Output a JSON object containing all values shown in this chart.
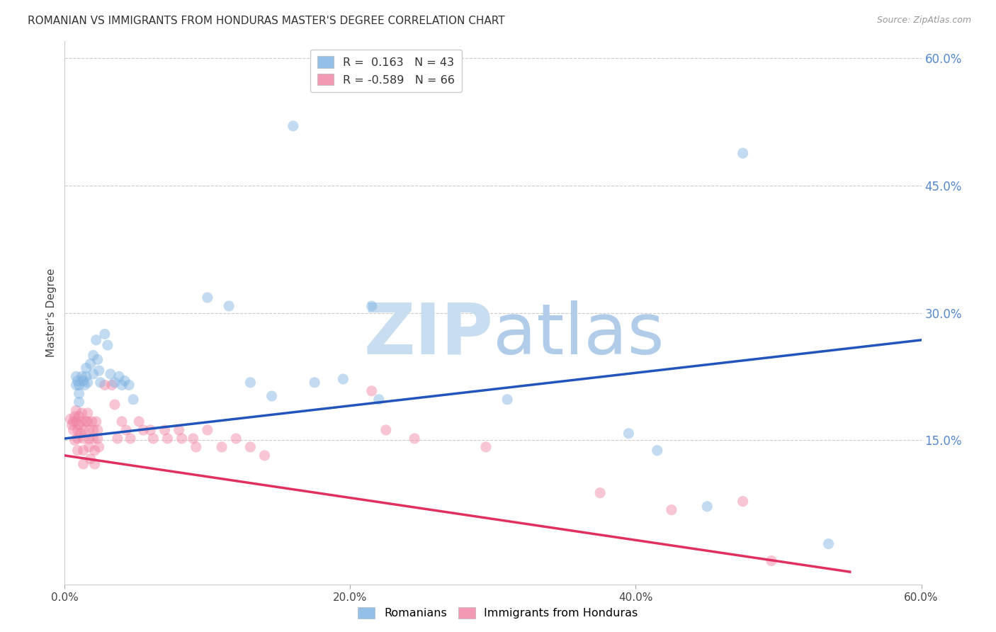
{
  "title": "ROMANIAN VS IMMIGRANTS FROM HONDURAS MASTER'S DEGREE CORRELATION CHART",
  "source": "Source: ZipAtlas.com",
  "ylabel": "Master's Degree",
  "xlim": [
    0.0,
    0.6
  ],
  "ylim": [
    -0.02,
    0.62
  ],
  "ytick_labels": [
    "15.0%",
    "30.0%",
    "45.0%",
    "60.0%"
  ],
  "ytick_values": [
    0.15,
    0.3,
    0.45,
    0.6
  ],
  "xtick_labels": [
    "0.0%",
    "20.0%",
    "40.0%",
    "60.0%"
  ],
  "xtick_values": [
    0.0,
    0.2,
    0.4,
    0.6
  ],
  "blue_R": 0.163,
  "blue_N": 43,
  "pink_R": -0.589,
  "pink_N": 66,
  "blue_scatter": [
    [
      0.008,
      0.225
    ],
    [
      0.008,
      0.215
    ],
    [
      0.009,
      0.22
    ],
    [
      0.01,
      0.215
    ],
    [
      0.01,
      0.205
    ],
    [
      0.01,
      0.195
    ],
    [
      0.012,
      0.225
    ],
    [
      0.013,
      0.22
    ],
    [
      0.014,
      0.215
    ],
    [
      0.015,
      0.235
    ],
    [
      0.015,
      0.225
    ],
    [
      0.016,
      0.218
    ],
    [
      0.018,
      0.24
    ],
    [
      0.02,
      0.25
    ],
    [
      0.02,
      0.228
    ],
    [
      0.022,
      0.268
    ],
    [
      0.023,
      0.245
    ],
    [
      0.024,
      0.232
    ],
    [
      0.025,
      0.218
    ],
    [
      0.028,
      0.275
    ],
    [
      0.03,
      0.262
    ],
    [
      0.032,
      0.228
    ],
    [
      0.035,
      0.218
    ],
    [
      0.038,
      0.225
    ],
    [
      0.04,
      0.215
    ],
    [
      0.042,
      0.22
    ],
    [
      0.045,
      0.215
    ],
    [
      0.048,
      0.198
    ],
    [
      0.1,
      0.318
    ],
    [
      0.115,
      0.308
    ],
    [
      0.13,
      0.218
    ],
    [
      0.145,
      0.202
    ],
    [
      0.16,
      0.52
    ],
    [
      0.175,
      0.218
    ],
    [
      0.195,
      0.222
    ],
    [
      0.215,
      0.308
    ],
    [
      0.22,
      0.198
    ],
    [
      0.31,
      0.198
    ],
    [
      0.395,
      0.158
    ],
    [
      0.415,
      0.138
    ],
    [
      0.45,
      0.072
    ],
    [
      0.475,
      0.488
    ],
    [
      0.535,
      0.028
    ]
  ],
  "pink_scatter": [
    [
      0.004,
      0.175
    ],
    [
      0.005,
      0.168
    ],
    [
      0.006,
      0.172
    ],
    [
      0.006,
      0.162
    ],
    [
      0.007,
      0.178
    ],
    [
      0.007,
      0.15
    ],
    [
      0.008,
      0.185
    ],
    [
      0.008,
      0.172
    ],
    [
      0.009,
      0.162
    ],
    [
      0.009,
      0.152
    ],
    [
      0.009,
      0.138
    ],
    [
      0.01,
      0.178
    ],
    [
      0.01,
      0.168
    ],
    [
      0.011,
      0.158
    ],
    [
      0.012,
      0.182
    ],
    [
      0.012,
      0.172
    ],
    [
      0.013,
      0.162
    ],
    [
      0.013,
      0.152
    ],
    [
      0.013,
      0.138
    ],
    [
      0.013,
      0.122
    ],
    [
      0.015,
      0.172
    ],
    [
      0.016,
      0.182
    ],
    [
      0.016,
      0.172
    ],
    [
      0.017,
      0.162
    ],
    [
      0.017,
      0.152
    ],
    [
      0.017,
      0.142
    ],
    [
      0.018,
      0.128
    ],
    [
      0.019,
      0.172
    ],
    [
      0.02,
      0.162
    ],
    [
      0.02,
      0.152
    ],
    [
      0.021,
      0.138
    ],
    [
      0.021,
      0.122
    ],
    [
      0.022,
      0.172
    ],
    [
      0.023,
      0.162
    ],
    [
      0.023,
      0.152
    ],
    [
      0.024,
      0.142
    ],
    [
      0.028,
      0.215
    ],
    [
      0.033,
      0.215
    ],
    [
      0.035,
      0.192
    ],
    [
      0.037,
      0.152
    ],
    [
      0.04,
      0.172
    ],
    [
      0.043,
      0.162
    ],
    [
      0.046,
      0.152
    ],
    [
      0.052,
      0.172
    ],
    [
      0.055,
      0.162
    ],
    [
      0.06,
      0.162
    ],
    [
      0.062,
      0.152
    ],
    [
      0.07,
      0.162
    ],
    [
      0.072,
      0.152
    ],
    [
      0.08,
      0.162
    ],
    [
      0.082,
      0.152
    ],
    [
      0.09,
      0.152
    ],
    [
      0.092,
      0.142
    ],
    [
      0.1,
      0.162
    ],
    [
      0.11,
      0.142
    ],
    [
      0.12,
      0.152
    ],
    [
      0.13,
      0.142
    ],
    [
      0.14,
      0.132
    ],
    [
      0.215,
      0.208
    ],
    [
      0.225,
      0.162
    ],
    [
      0.245,
      0.152
    ],
    [
      0.295,
      0.142
    ],
    [
      0.375,
      0.088
    ],
    [
      0.425,
      0.068
    ],
    [
      0.475,
      0.078
    ],
    [
      0.495,
      0.008
    ]
  ],
  "blue_line_x": [
    0.0,
    0.6
  ],
  "blue_line_y": [
    0.152,
    0.268
  ],
  "pink_line_x": [
    0.0,
    0.55
  ],
  "pink_line_y": [
    0.132,
    -0.005
  ],
  "scatter_size": 120,
  "scatter_alpha": 0.45,
  "blue_color": "#7ab0e0",
  "pink_color": "#f080a0",
  "blue_line_color": "#2255bb",
  "pink_line_color": "#e03060",
  "watermark_zip": "ZIP",
  "watermark_atlas": "atlas",
  "background_color": "#ffffff",
  "grid_color": "#cccccc"
}
